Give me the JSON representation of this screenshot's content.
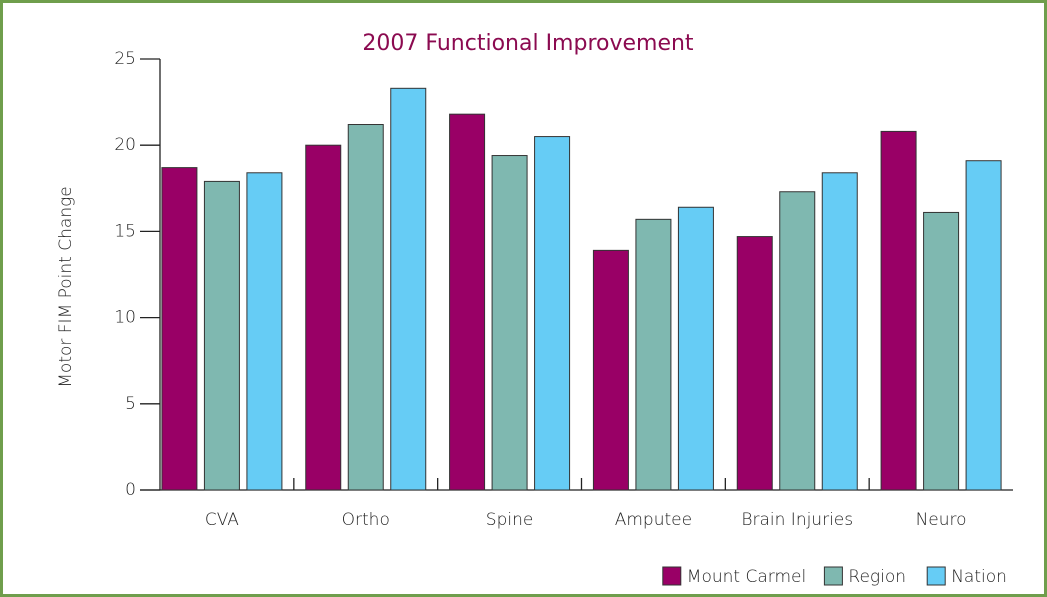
{
  "chart_data": {
    "type": "bar",
    "title": "2007 Functional Improvement",
    "y_label": "Motor FIM Point Change",
    "categories": [
      "CVA",
      "Ortho",
      "Spine",
      "Amputee",
      "Brain Injuries",
      "Neuro"
    ],
    "series": [
      {
        "name": "Mount Carmel",
        "color": "#990066",
        "values": [
          18.7,
          20.0,
          21.8,
          13.9,
          14.7,
          20.8
        ]
      },
      {
        "name": "Region",
        "color": "#7fb8b0",
        "values": [
          17.9,
          21.2,
          19.4,
          15.7,
          17.3,
          16.1
        ]
      },
      {
        "name": "Nation",
        "color": "#66ccf5",
        "values": [
          18.4,
          23.3,
          20.5,
          16.4,
          18.4,
          19.1
        ]
      }
    ],
    "ylim": [
      0,
      25
    ],
    "yticks": [
      0,
      5,
      10,
      15,
      20,
      25
    ],
    "grid": false,
    "legend": "bottom-right"
  }
}
